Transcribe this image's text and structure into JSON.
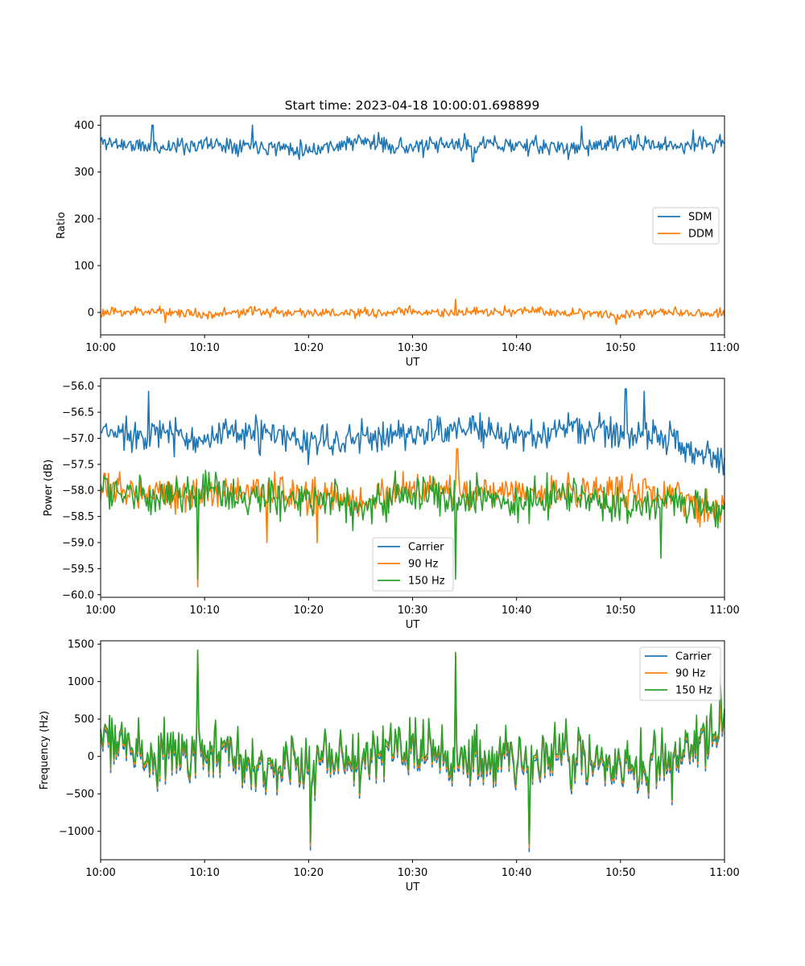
{
  "figure_title": "Start time: 2023-04-18 10:00:01.698899",
  "colors": {
    "blue": "#1f77b4",
    "orange": "#ff7f0e",
    "green": "#2ca02c"
  },
  "chart_data": [
    {
      "type": "line",
      "xlabel": "UT",
      "ylabel": "Ratio",
      "xlim": [
        "10:00",
        "11:00"
      ],
      "x_ticks": [
        "10:00",
        "10:10",
        "10:20",
        "10:30",
        "10:40",
        "10:50",
        "11:00"
      ],
      "ylim": [
        -48,
        420
      ],
      "y_ticks": [
        0,
        100,
        200,
        300,
        400
      ],
      "y_tick_labels": [
        "0",
        "100",
        "200",
        "300",
        "400"
      ],
      "grid": false,
      "legend_position": "center-right",
      "x_minutes": [
        0,
        5,
        10,
        15,
        20,
        25,
        30,
        35,
        40,
        45,
        50,
        55,
        60
      ],
      "series": [
        {
          "name": "SDM",
          "color": "#1f77b4",
          "mean": 357,
          "amplitude": 20,
          "seed": 11,
          "values": [
            365,
            352,
            360,
            358,
            348,
            366,
            352,
            360,
            358,
            350,
            362,
            356,
            362
          ],
          "spikes": [
            {
              "minute": 5,
              "value": 400
            },
            {
              "minute": 14.6,
              "value": 400
            },
            {
              "minute": 35.8,
              "value": 322
            },
            {
              "minute": 46.3,
              "value": 398
            },
            {
              "minute": 57,
              "value": 390
            }
          ]
        },
        {
          "name": "DDM",
          "color": "#ff7f0e",
          "mean": 0,
          "amplitude": 12,
          "seed": 23,
          "values": [
            -2,
            4,
            -4,
            2,
            0,
            -3,
            2,
            -2,
            3,
            0,
            -4,
            2,
            -1
          ],
          "spikes": [
            {
              "minute": 34.1,
              "value": 28
            },
            {
              "minute": 49.6,
              "value": -26
            },
            {
              "minute": 6.2,
              "value": -22
            }
          ]
        }
      ]
    },
    {
      "type": "line",
      "xlabel": "UT",
      "ylabel": "Power (dB)",
      "xlim": [
        "10:00",
        "11:00"
      ],
      "x_ticks": [
        "10:00",
        "10:10",
        "10:20",
        "10:30",
        "10:40",
        "10:50",
        "11:00"
      ],
      "ylim": [
        -60.05,
        -55.85
      ],
      "y_ticks": [
        -60.0,
        -59.5,
        -59.0,
        -58.5,
        -58.0,
        -57.5,
        -57.0,
        -56.5,
        -56.0
      ],
      "y_tick_labels": [
        "−60.0",
        "−59.5",
        "−59.0",
        "−58.5",
        "−58.0",
        "−57.5",
        "−57.0",
        "−56.5",
        "−56.0"
      ],
      "grid": false,
      "legend_position": "lower-center",
      "x_minutes": [
        0,
        5,
        10,
        15,
        20,
        25,
        30,
        35,
        40,
        45,
        50,
        55,
        60
      ],
      "series": [
        {
          "name": "Carrier",
          "color": "#1f77b4",
          "mean": -57.0,
          "amplitude": 0.35,
          "seed": 37,
          "values": [
            -56.9,
            -56.9,
            -57.0,
            -56.9,
            -57.1,
            -57.0,
            -56.9,
            -56.8,
            -57.0,
            -56.8,
            -56.9,
            -57.0,
            -57.5
          ],
          "spikes": [
            {
              "minute": 4.6,
              "value": -56.1
            },
            {
              "minute": 50.5,
              "value": -56.05
            },
            {
              "minute": 52.3,
              "value": -56.1
            }
          ]
        },
        {
          "name": "90 Hz",
          "color": "#ff7f0e",
          "mean": -58.1,
          "amplitude": 0.35,
          "seed": 53,
          "values": [
            -58.0,
            -58.0,
            -58.1,
            -58.0,
            -58.1,
            -58.2,
            -58.0,
            -58.0,
            -58.1,
            -58.0,
            -58.0,
            -58.1,
            -58.4
          ],
          "spikes": [
            {
              "minute": 9.3,
              "value": -59.85
            },
            {
              "minute": 16,
              "value": -59.0
            },
            {
              "minute": 20.8,
              "value": -59.0
            },
            {
              "minute": 34.3,
              "value": -57.2
            }
          ]
        },
        {
          "name": "150 Hz",
          "color": "#2ca02c",
          "mean": -58.1,
          "amplitude": 0.4,
          "seed": 71,
          "values": [
            -57.9,
            -58.2,
            -58.0,
            -58.2,
            -58.1,
            -58.3,
            -58.0,
            -58.1,
            -58.2,
            -58.1,
            -58.3,
            -58.2,
            -58.4
          ],
          "spikes": [
            {
              "minute": 9.3,
              "value": -59.7
            },
            {
              "minute": 34.1,
              "value": -59.7
            },
            {
              "minute": 53.9,
              "value": -59.3
            }
          ]
        }
      ]
    },
    {
      "type": "line",
      "xlabel": "UT",
      "ylabel": "Frequency (Hz)",
      "xlim": [
        "10:00",
        "11:00"
      ],
      "x_ticks": [
        "10:00",
        "10:10",
        "10:20",
        "10:30",
        "10:40",
        "10:50",
        "11:00"
      ],
      "ylim": [
        -1380,
        1545
      ],
      "y_ticks": [
        -1000,
        -500,
        0,
        500,
        1000,
        1500
      ],
      "y_tick_labels": [
        "−1000",
        "−500",
        "0",
        "500",
        "1000",
        "1500"
      ],
      "grid": false,
      "legend_position": "upper-right",
      "x_minutes": [
        0,
        5,
        10,
        15,
        20,
        25,
        30,
        35,
        40,
        45,
        50,
        55,
        60
      ],
      "series": [
        {
          "name": "Carrier",
          "color": "#1f77b4",
          "mean": -60,
          "amplitude": 420,
          "seed": 97,
          "values": [
            250,
            -50,
            0,
            -80,
            -150,
            0,
            100,
            -100,
            -80,
            0,
            -150,
            -100,
            400
          ],
          "spikes": [
            {
              "minute": 9.3,
              "value": 1380
            },
            {
              "minute": 20.2,
              "value": -1250
            },
            {
              "minute": 41.2,
              "value": -1270
            },
            {
              "minute": 34.1,
              "value": 1350
            }
          ]
        },
        {
          "name": "90 Hz",
          "color": "#ff7f0e",
          "mean": -20,
          "amplitude": 420,
          "seed": 97,
          "values": [
            290,
            -10,
            40,
            -40,
            -110,
            40,
            140,
            -60,
            -40,
            40,
            -110,
            -60,
            440
          ],
          "spikes": [
            {
              "minute": 9.3,
              "value": 1400
            },
            {
              "minute": 20.2,
              "value": -1200
            },
            {
              "minute": 41.2,
              "value": -1220
            },
            {
              "minute": 34.1,
              "value": 1370
            }
          ]
        },
        {
          "name": "150 Hz",
          "color": "#2ca02c",
          "mean": 10,
          "amplitude": 420,
          "seed": 97,
          "values": [
            320,
            20,
            70,
            -10,
            -80,
            70,
            170,
            -30,
            -10,
            70,
            -80,
            -30,
            470
          ],
          "spikes": [
            {
              "minute": 9.3,
              "value": 1420
            },
            {
              "minute": 20.2,
              "value": -1150
            },
            {
              "minute": 41.2,
              "value": -1170
            },
            {
              "minute": 34.1,
              "value": 1390
            },
            {
              "minute": 59.6,
              "value": 1030
            }
          ]
        }
      ]
    }
  ]
}
